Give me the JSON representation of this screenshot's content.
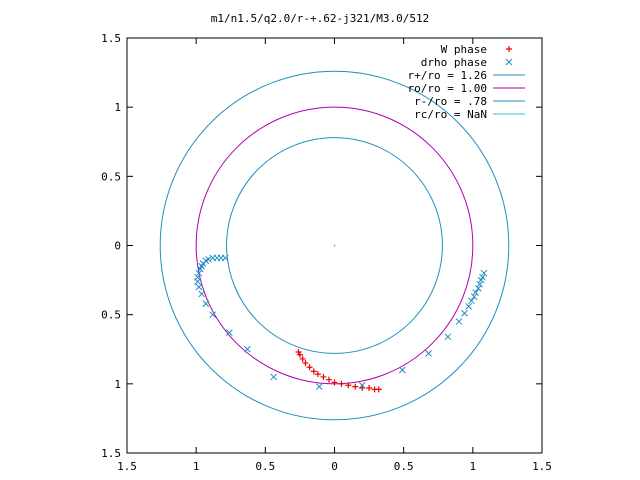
{
  "chart_data": {
    "type": "scatter",
    "title": "m1/n1.5/q2.0/r-+.62-j321/M3.0/512",
    "xlabel": "",
    "ylabel": "",
    "xlim": [
      -1.5,
      1.5
    ],
    "ylim": [
      -1.5,
      1.5
    ],
    "x_ticks": [
      -1.5,
      -1,
      -0.5,
      0,
      0.5,
      1,
      1.5
    ],
    "y_ticks": [
      -1.5,
      -1,
      -0.5,
      0,
      0.5,
      1,
      1.5
    ],
    "x_tick_labels": [
      "1.5",
      "1",
      "0.5",
      "0",
      "0.5",
      "1",
      "1.5"
    ],
    "y_tick_labels": [
      "1.5",
      "1",
      "0.5",
      "0",
      "0.5",
      "1",
      "1.5"
    ],
    "grid": false,
    "legend_position": "top-right",
    "circles": [
      {
        "name": "r+/ro = 1.26",
        "radius": 1.26,
        "color": "#1f8fbf"
      },
      {
        "name": "ro/ro = 1.00",
        "radius": 1.0,
        "color": "#b000b0"
      },
      {
        "name": "r-/ro = .78",
        "radius": 0.78,
        "color": "#1f8fbf"
      },
      {
        "name": "rc/ro = NaN",
        "radius": null,
        "color": "#33c0c0"
      }
    ],
    "series": [
      {
        "name": "W phase",
        "marker": "+",
        "color": "#ee0000",
        "points": [
          [
            -0.26,
            -0.77
          ],
          [
            -0.25,
            -0.79
          ],
          [
            -0.23,
            -0.82
          ],
          [
            -0.21,
            -0.85
          ],
          [
            -0.18,
            -0.88
          ],
          [
            -0.15,
            -0.91
          ],
          [
            -0.12,
            -0.93
          ],
          [
            -0.08,
            -0.95
          ],
          [
            -0.04,
            -0.97
          ],
          [
            0.0,
            -0.99
          ],
          [
            0.05,
            -1.0
          ],
          [
            0.1,
            -1.01
          ],
          [
            0.15,
            -1.02
          ],
          [
            0.2,
            -1.03
          ],
          [
            0.25,
            -1.03
          ],
          [
            0.29,
            -1.04
          ],
          [
            0.32,
            -1.04
          ]
        ]
      },
      {
        "name": "drho phase",
        "marker": "x",
        "color": "#1f8fbf",
        "points": [
          [
            -0.79,
            -0.09
          ],
          [
            -0.82,
            -0.09
          ],
          [
            -0.85,
            -0.09
          ],
          [
            -0.88,
            -0.09
          ],
          [
            -0.91,
            -0.1
          ],
          [
            -0.93,
            -0.11
          ],
          [
            -0.95,
            -0.13
          ],
          [
            -0.96,
            -0.15
          ],
          [
            -0.97,
            -0.17
          ],
          [
            -0.98,
            -0.2
          ],
          [
            -0.99,
            -0.23
          ],
          [
            -0.99,
            -0.26
          ],
          [
            -0.98,
            -0.3
          ],
          [
            -0.96,
            -0.35
          ],
          [
            -0.93,
            -0.42
          ],
          [
            -0.88,
            -0.5
          ],
          [
            -0.76,
            -0.63
          ],
          [
            -0.63,
            -0.75
          ],
          [
            -0.44,
            -0.95
          ],
          [
            -0.11,
            -1.02
          ],
          [
            0.2,
            -1.01
          ],
          [
            0.49,
            -0.9
          ],
          [
            0.68,
            -0.78
          ],
          [
            0.82,
            -0.66
          ],
          [
            0.9,
            -0.55
          ],
          [
            0.94,
            -0.49
          ],
          [
            0.97,
            -0.44
          ],
          [
            0.99,
            -0.4
          ],
          [
            1.01,
            -0.37
          ],
          [
            1.02,
            -0.34
          ],
          [
            1.04,
            -0.31
          ],
          [
            1.05,
            -0.28
          ],
          [
            1.06,
            -0.25
          ],
          [
            1.07,
            -0.23
          ],
          [
            1.08,
            -0.2
          ]
        ]
      }
    ],
    "annotations": [
      {
        "type": "point",
        "x": 0,
        "y": 0
      }
    ]
  }
}
